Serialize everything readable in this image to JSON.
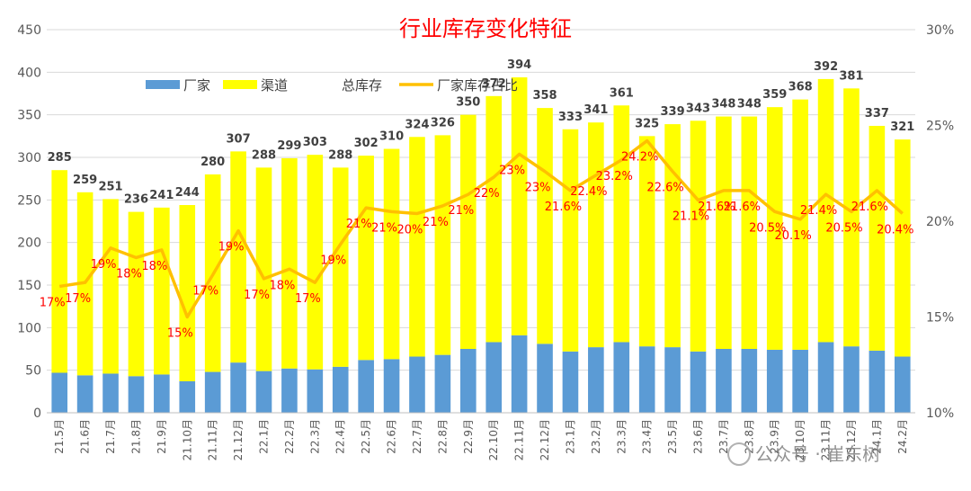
{
  "chart_data": {
    "type": "bar",
    "title": "行业库存变化特征",
    "categories": [
      "21.5月",
      "21.6月",
      "21.7月",
      "21.8月",
      "21.9月",
      "21.10月",
      "21.11月",
      "21.12月",
      "22.1月",
      "22.2月",
      "22.3月",
      "22.4月",
      "22.5月",
      "22.6月",
      "22.7月",
      "22.8月",
      "22.9月",
      "22.10月",
      "22.11月",
      "22.12月",
      "23.1月",
      "23.2月",
      "23.3月",
      "23.4月",
      "23.5月",
      "23.6月",
      "23.7月",
      "23.8月",
      "23.9月",
      "23.10月",
      "23.11月",
      "23.12月",
      "24.1月",
      "24.2月"
    ],
    "series": [
      {
        "name": "厂家",
        "type": "bar-stacked",
        "color": "#5b9bd5",
        "values": [
          47,
          44,
          46,
          43,
          45,
          37,
          48,
          59,
          49,
          52,
          51,
          54,
          62,
          63,
          66,
          68,
          75,
          83,
          91,
          81,
          72,
          77,
          83,
          78,
          77,
          72,
          75,
          75,
          74,
          74,
          83,
          78,
          73,
          66
        ]
      },
      {
        "name": "渠道",
        "type": "bar-stacked",
        "color": "#ffff00",
        "values": [
          238,
          215,
          205,
          193,
          196,
          207,
          232,
          248,
          239,
          247,
          252,
          234,
          240,
          247,
          258,
          258,
          275,
          289,
          303,
          277,
          261,
          264,
          278,
          247,
          262,
          271,
          273,
          273,
          285,
          294,
          309,
          303,
          264,
          255
        ]
      },
      {
        "name": "总库存",
        "type": "data-label",
        "values": [
          285,
          259,
          251,
          236,
          241,
          244,
          280,
          307,
          288,
          299,
          303,
          288,
          302,
          310,
          324,
          326,
          350,
          372,
          394,
          358,
          333,
          341,
          361,
          325,
          339,
          343,
          348,
          348,
          359,
          368,
          392,
          381,
          337,
          321
        ]
      },
      {
        "name": "厂家库存占比",
        "type": "line",
        "axis": "right",
        "color": "#ffc000",
        "values": [
          16.6,
          16.8,
          18.6,
          18.1,
          18.5,
          15.0,
          17.2,
          19.5,
          17.0,
          17.5,
          16.8,
          18.8,
          20.7,
          20.5,
          20.4,
          20.8,
          21.4,
          22.3,
          23.5,
          22.6,
          21.6,
          22.4,
          23.2,
          24.2,
          22.6,
          21.1,
          21.6,
          21.6,
          20.5,
          20.1,
          21.4,
          20.5,
          21.6,
          20.4
        ],
        "labels": [
          "17%",
          "17%",
          "19%",
          "18%",
          "18%",
          "15%",
          "17%",
          "19%",
          "17%",
          "18%",
          "17%",
          "19%",
          "21%",
          "21%",
          "20%",
          "21%",
          "21%",
          "22%",
          "23%",
          "23%",
          "21.6%",
          "22.4%",
          "23.2%",
          "24.2%",
          "22.6%",
          "21.1%",
          "21.6%",
          "21.6%",
          "20.5%",
          "20.1%",
          "21.4%",
          "20.5%",
          "21.6%",
          "20.4%"
        ]
      }
    ],
    "y_left": {
      "min": 0,
      "max": 450,
      "step": 50,
      "ticks": [
        "0",
        "50",
        "100",
        "150",
        "200",
        "250",
        "300",
        "350",
        "400",
        "450"
      ]
    },
    "y_right": {
      "min": 10,
      "max": 30,
      "step": 5,
      "ticks": [
        "10%",
        "15%",
        "20%",
        "25%",
        "30%"
      ]
    },
    "legend": {
      "position": "top-left",
      "items": [
        "厂家",
        "渠道",
        "总库存",
        "厂家库存占比"
      ]
    },
    "grid": true,
    "watermark": "公众号 · 崔东树"
  }
}
